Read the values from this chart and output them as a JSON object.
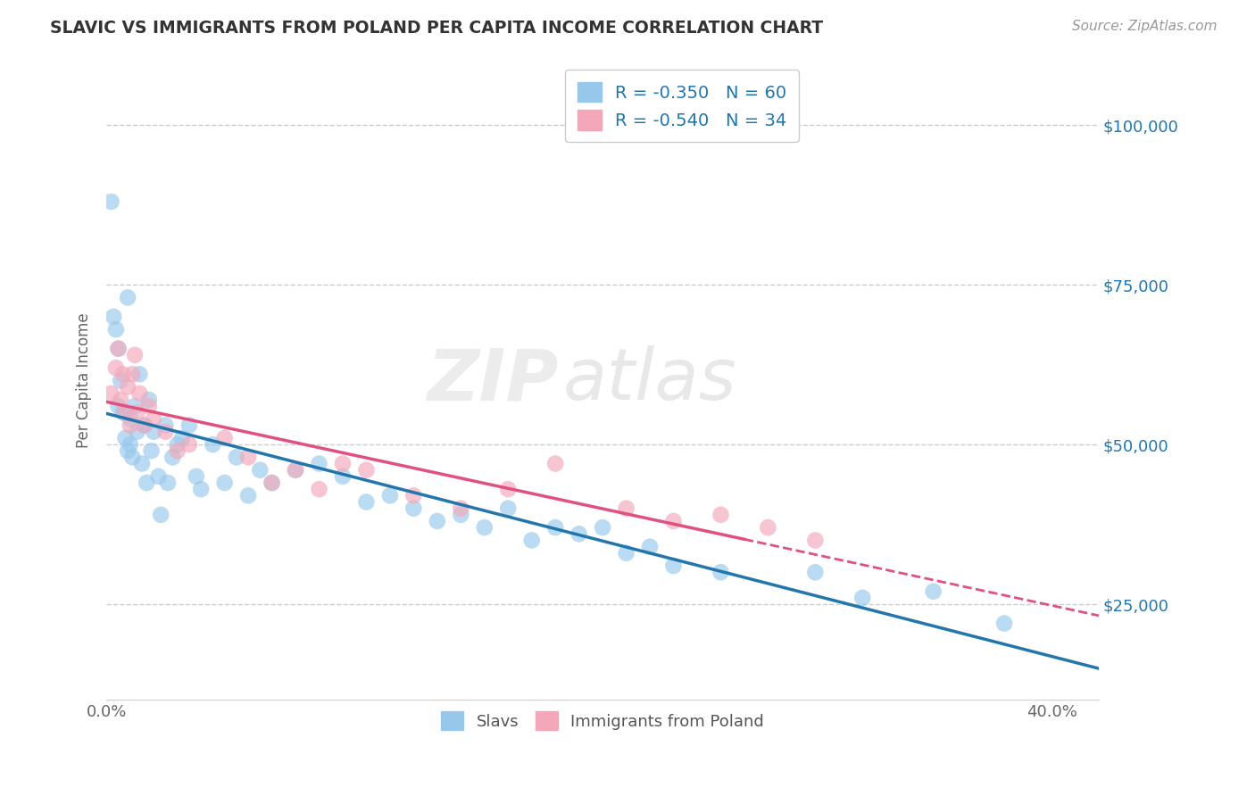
{
  "title": "SLAVIC VS IMMIGRANTS FROM POLAND PER CAPITA INCOME CORRELATION CHART",
  "source": "Source: ZipAtlas.com",
  "ylabel": "Per Capita Income",
  "xlim": [
    0.0,
    0.42
  ],
  "ylim": [
    10000,
    110000
  ],
  "ytick_labels": [
    "$25,000",
    "$50,000",
    "$75,000",
    "$100,000"
  ],
  "ytick_values": [
    25000,
    50000,
    75000,
    100000
  ],
  "watermark_zip": "ZIP",
  "watermark_atlas": "atlas",
  "R_slavs": -0.35,
  "N_slavs": 60,
  "R_poland": -0.54,
  "N_poland": 34,
  "legend_label_slavs": "Slavs",
  "legend_label_poland": "Immigrants from Poland",
  "color_slavs": "#97C8EC",
  "color_poland": "#F4A7B9",
  "trendline_color_slavs": "#2176AE",
  "trendline_color_poland": "#E05080",
  "scatter_alpha": 0.65,
  "scatter_size": 180,
  "slavs_x": [
    0.002,
    0.003,
    0.004,
    0.005,
    0.005,
    0.006,
    0.007,
    0.008,
    0.009,
    0.009,
    0.01,
    0.01,
    0.011,
    0.012,
    0.013,
    0.014,
    0.015,
    0.016,
    0.017,
    0.018,
    0.019,
    0.02,
    0.022,
    0.023,
    0.025,
    0.026,
    0.028,
    0.03,
    0.032,
    0.035,
    0.038,
    0.04,
    0.045,
    0.05,
    0.055,
    0.06,
    0.065,
    0.07,
    0.08,
    0.09,
    0.1,
    0.11,
    0.12,
    0.13,
    0.14,
    0.15,
    0.16,
    0.17,
    0.18,
    0.19,
    0.2,
    0.21,
    0.22,
    0.23,
    0.24,
    0.26,
    0.3,
    0.32,
    0.35,
    0.38
  ],
  "slavs_y": [
    88000,
    70000,
    68000,
    56000,
    65000,
    60000,
    55000,
    51000,
    49000,
    73000,
    50000,
    54000,
    48000,
    56000,
    52000,
    61000,
    47000,
    53000,
    44000,
    57000,
    49000,
    52000,
    45000,
    39000,
    53000,
    44000,
    48000,
    50000,
    51000,
    53000,
    45000,
    43000,
    50000,
    44000,
    48000,
    42000,
    46000,
    44000,
    46000,
    47000,
    45000,
    41000,
    42000,
    40000,
    38000,
    39000,
    37000,
    40000,
    35000,
    37000,
    36000,
    37000,
    33000,
    34000,
    31000,
    30000,
    30000,
    26000,
    27000,
    22000
  ],
  "poland_x": [
    0.002,
    0.004,
    0.005,
    0.006,
    0.007,
    0.008,
    0.009,
    0.01,
    0.011,
    0.012,
    0.013,
    0.014,
    0.016,
    0.018,
    0.02,
    0.025,
    0.03,
    0.035,
    0.05,
    0.06,
    0.07,
    0.08,
    0.09,
    0.1,
    0.11,
    0.13,
    0.15,
    0.17,
    0.19,
    0.22,
    0.24,
    0.26,
    0.28,
    0.3
  ],
  "poland_y": [
    58000,
    62000,
    65000,
    57000,
    61000,
    55000,
    59000,
    53000,
    61000,
    64000,
    55000,
    58000,
    53000,
    56000,
    54000,
    52000,
    49000,
    50000,
    51000,
    48000,
    44000,
    46000,
    43000,
    47000,
    46000,
    42000,
    40000,
    43000,
    47000,
    40000,
    38000,
    39000,
    37000,
    35000
  ],
  "trendline_slavs_x0": 0.0,
  "trendline_slavs_x1": 0.42,
  "trendline_poland_solid_x0": 0.0,
  "trendline_poland_solid_x1": 0.27,
  "trendline_poland_dash_x0": 0.27,
  "trendline_poland_dash_x1": 0.42
}
